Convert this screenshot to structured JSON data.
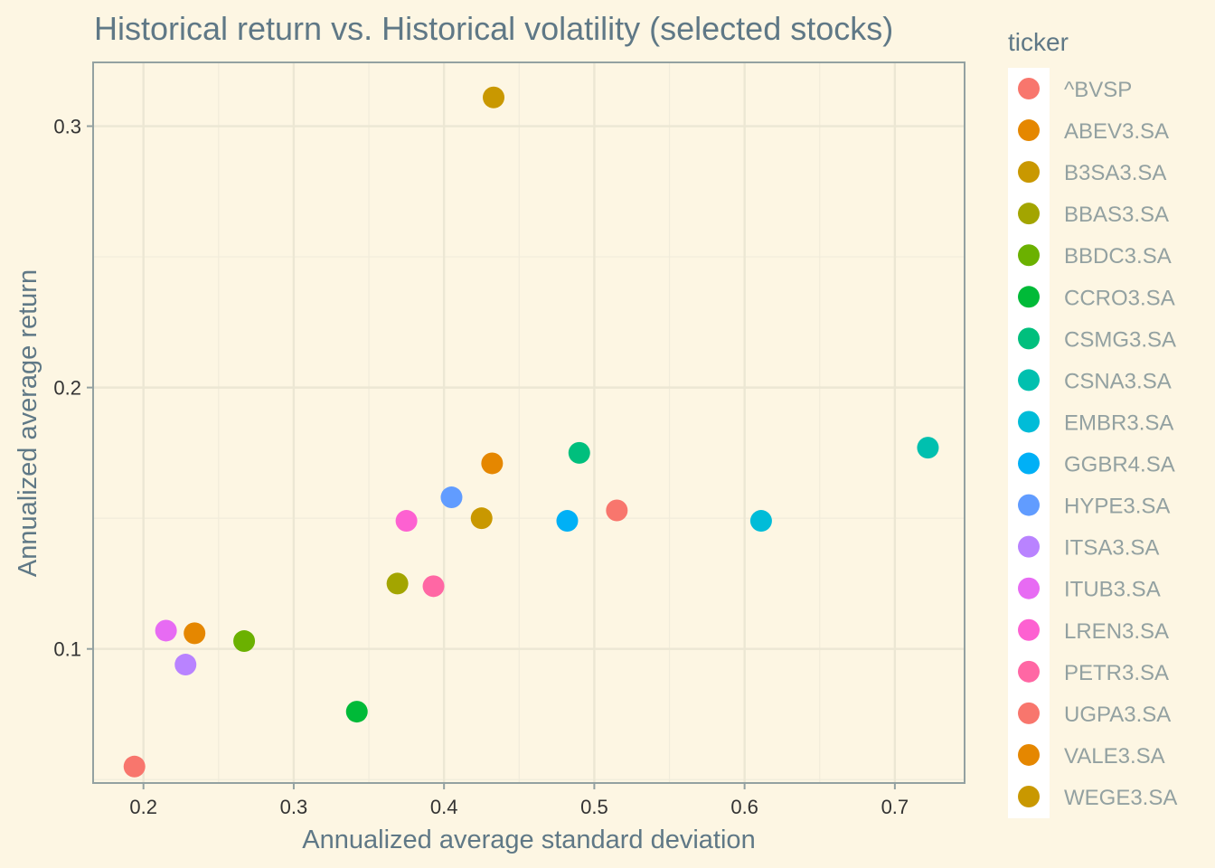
{
  "chart_data": {
    "type": "scatter",
    "title": "Historical return vs. Historical volatility (selected stocks)",
    "xlabel": "Annualized average standard deviation",
    "ylabel": "Annualized average return",
    "xlim": [
      0.1665,
      0.7464
    ],
    "ylim": [
      0.0487,
      0.3244
    ],
    "xticks": [
      0.2,
      0.3,
      0.4,
      0.5,
      0.6,
      0.7
    ],
    "yticks": [
      0.1,
      0.2,
      0.3
    ],
    "xtick_labels": [
      "0.2",
      "0.3",
      "0.4",
      "0.5",
      "0.6",
      "0.7"
    ],
    "ytick_labels": [
      "0.1",
      "0.2",
      "0.3"
    ],
    "grid": true,
    "legend": {
      "title": "ticker",
      "position": "right"
    },
    "series": [
      {
        "name": "^BVSP",
        "color": "#F8766D",
        "x": 0.194,
        "y": 0.055
      },
      {
        "name": "ABEV3.SA",
        "color": "#E58700",
        "x": 0.234,
        "y": 0.106
      },
      {
        "name": "B3SA3.SA",
        "color": "#C99800",
        "x": 0.425,
        "y": 0.15
      },
      {
        "name": "BBAS3.SA",
        "color": "#A3A500",
        "x": 0.369,
        "y": 0.125
      },
      {
        "name": "BBDC3.SA",
        "color": "#6BB100",
        "x": 0.267,
        "y": 0.103
      },
      {
        "name": "CCRO3.SA",
        "color": "#00BA38",
        "x": 0.342,
        "y": 0.076
      },
      {
        "name": "CSMG3.SA",
        "color": "#00BF7D",
        "x": 0.49,
        "y": 0.175
      },
      {
        "name": "CSNA3.SA",
        "color": "#00C0AF",
        "x": 0.722,
        "y": 0.177
      },
      {
        "name": "EMBR3.SA",
        "color": "#00BCD8",
        "x": 0.611,
        "y": 0.149
      },
      {
        "name": "GGBR4.SA",
        "color": "#00B0F6",
        "x": 0.482,
        "y": 0.149
      },
      {
        "name": "HYPE3.SA",
        "color": "#619CFF",
        "x": 0.405,
        "y": 0.158
      },
      {
        "name": "ITSA3.SA",
        "color": "#B983FF",
        "x": 0.228,
        "y": 0.094
      },
      {
        "name": "ITUB3.SA",
        "color": "#E76BF3",
        "x": 0.215,
        "y": 0.107
      },
      {
        "name": "LREN3.SA",
        "color": "#FD61D1",
        "x": 0.375,
        "y": 0.149
      },
      {
        "name": "PETR3.SA",
        "color": "#FF67A4",
        "x": 0.393,
        "y": 0.124
      },
      {
        "name": "UGPA3.SA",
        "color": "#F8766D",
        "x": 0.515,
        "y": 0.153
      },
      {
        "name": "VALE3.SA",
        "color": "#E58700",
        "x": 0.432,
        "y": 0.171
      },
      {
        "name": "WEGE3.SA",
        "color": "#C99800",
        "x": 0.433,
        "y": 0.311
      }
    ]
  }
}
